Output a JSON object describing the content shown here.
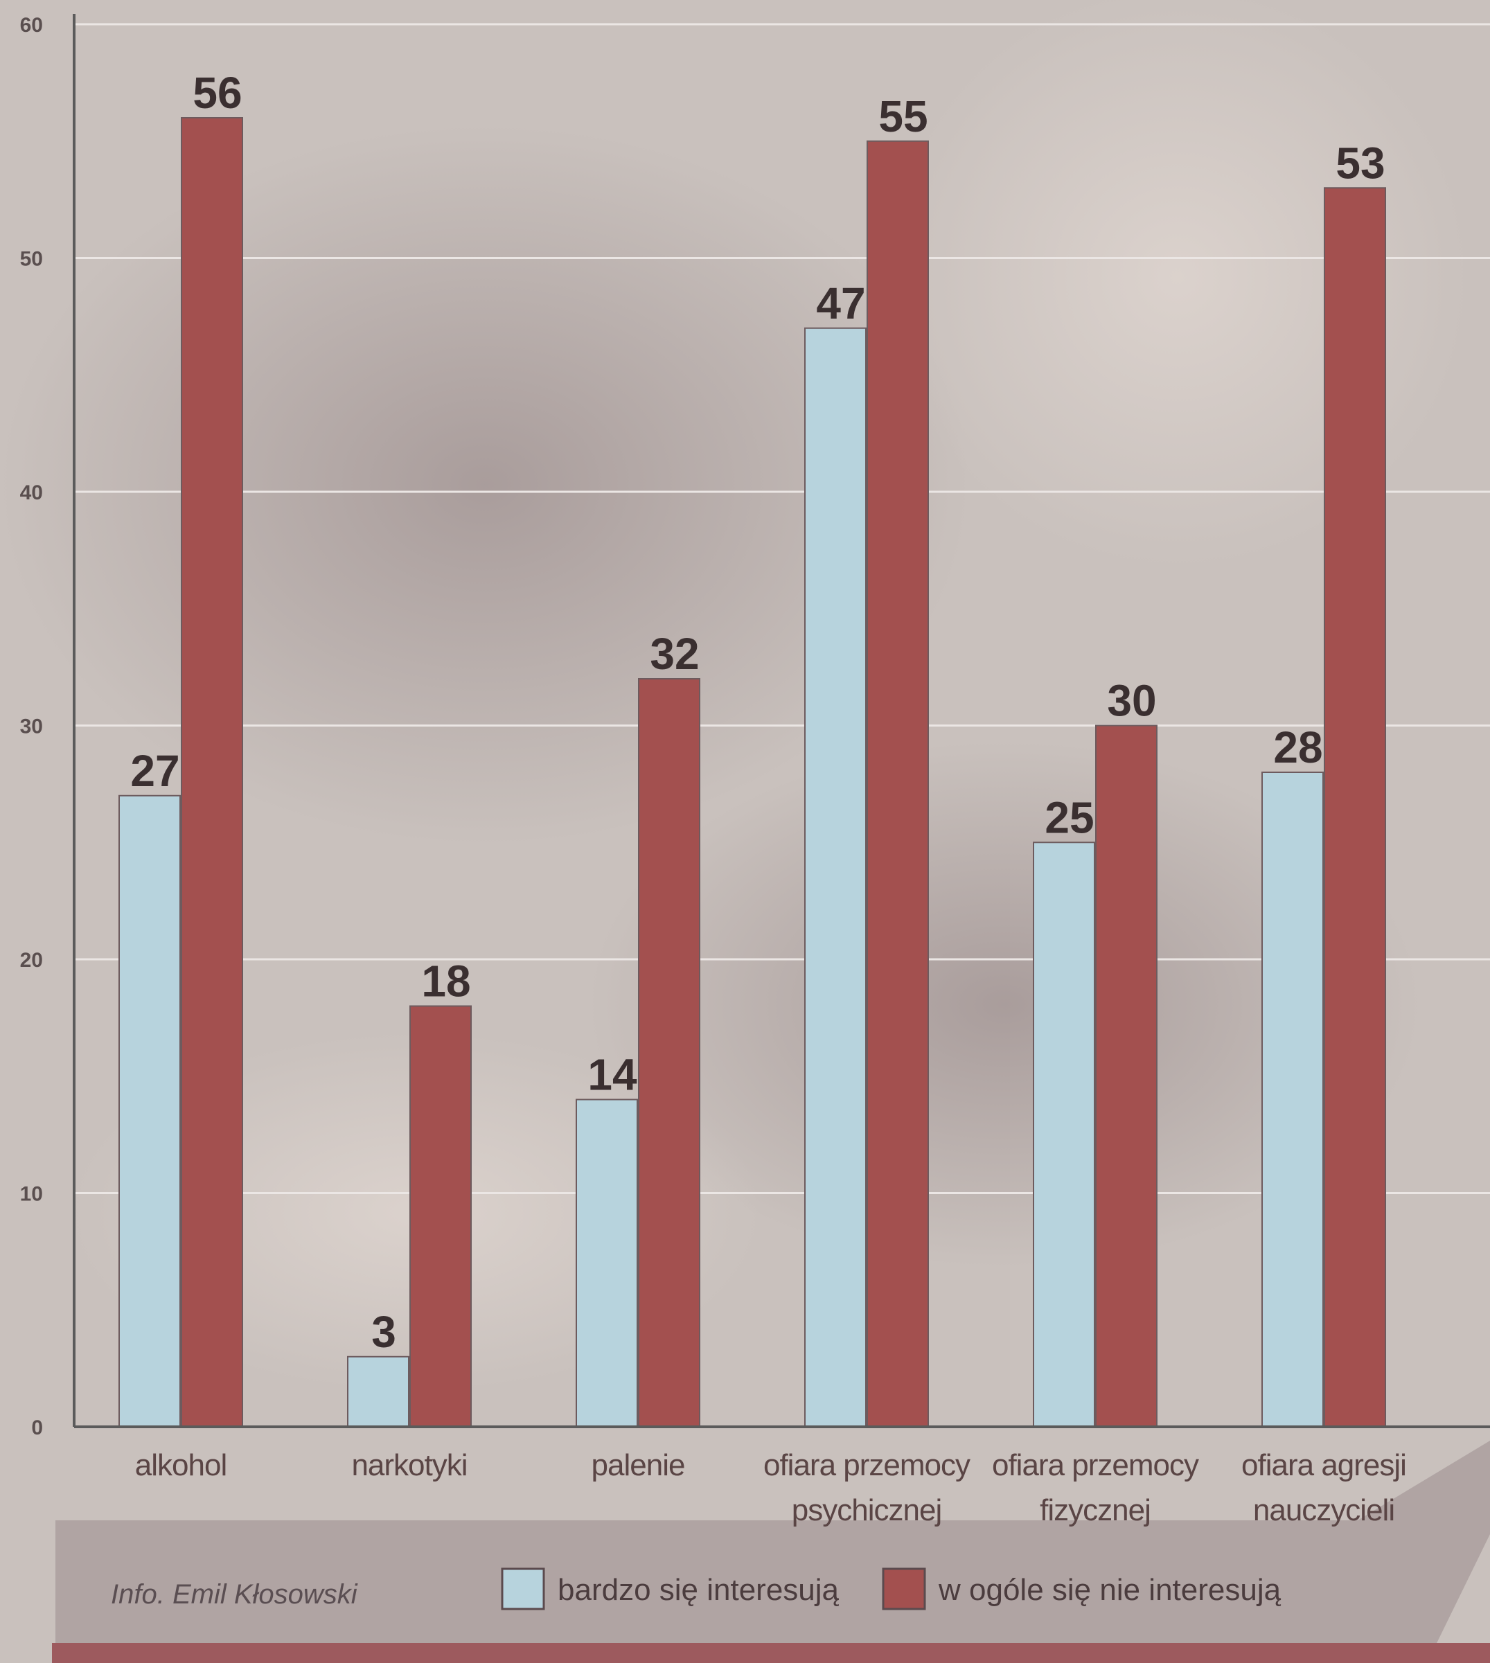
{
  "chart_data": {
    "type": "bar",
    "categories": [
      [
        "alkohol"
      ],
      [
        "narkotyki"
      ],
      [
        "palenie"
      ],
      [
        "ofiara przemocy",
        "psychicznej"
      ],
      [
        "ofiara przemocy",
        "fizycznej"
      ],
      [
        "ofiara agresji",
        "nauczycieli"
      ]
    ],
    "series": [
      {
        "name": "bardzo się interesują",
        "color": "#b7d3dd",
        "values": [
          27,
          3,
          14,
          47,
          25,
          28
        ]
      },
      {
        "name": "w ogóle się nie interesują",
        "color": "#a3504f",
        "values": [
          56,
          18,
          32,
          55,
          30,
          53
        ]
      }
    ],
    "ylim": [
      0,
      60
    ],
    "yticks": [
      0,
      10,
      20,
      30,
      40,
      50,
      60
    ],
    "grid": true,
    "legend_position": "bottom"
  },
  "credit": "Info. Emil Kłosowski",
  "colors": {
    "background": "#c9c1bd",
    "grid": "#ebe6e4",
    "axis": "#5b5b5b",
    "footer_band": "#9a8c8e",
    "footer_stripe": "#9d5a5e"
  }
}
